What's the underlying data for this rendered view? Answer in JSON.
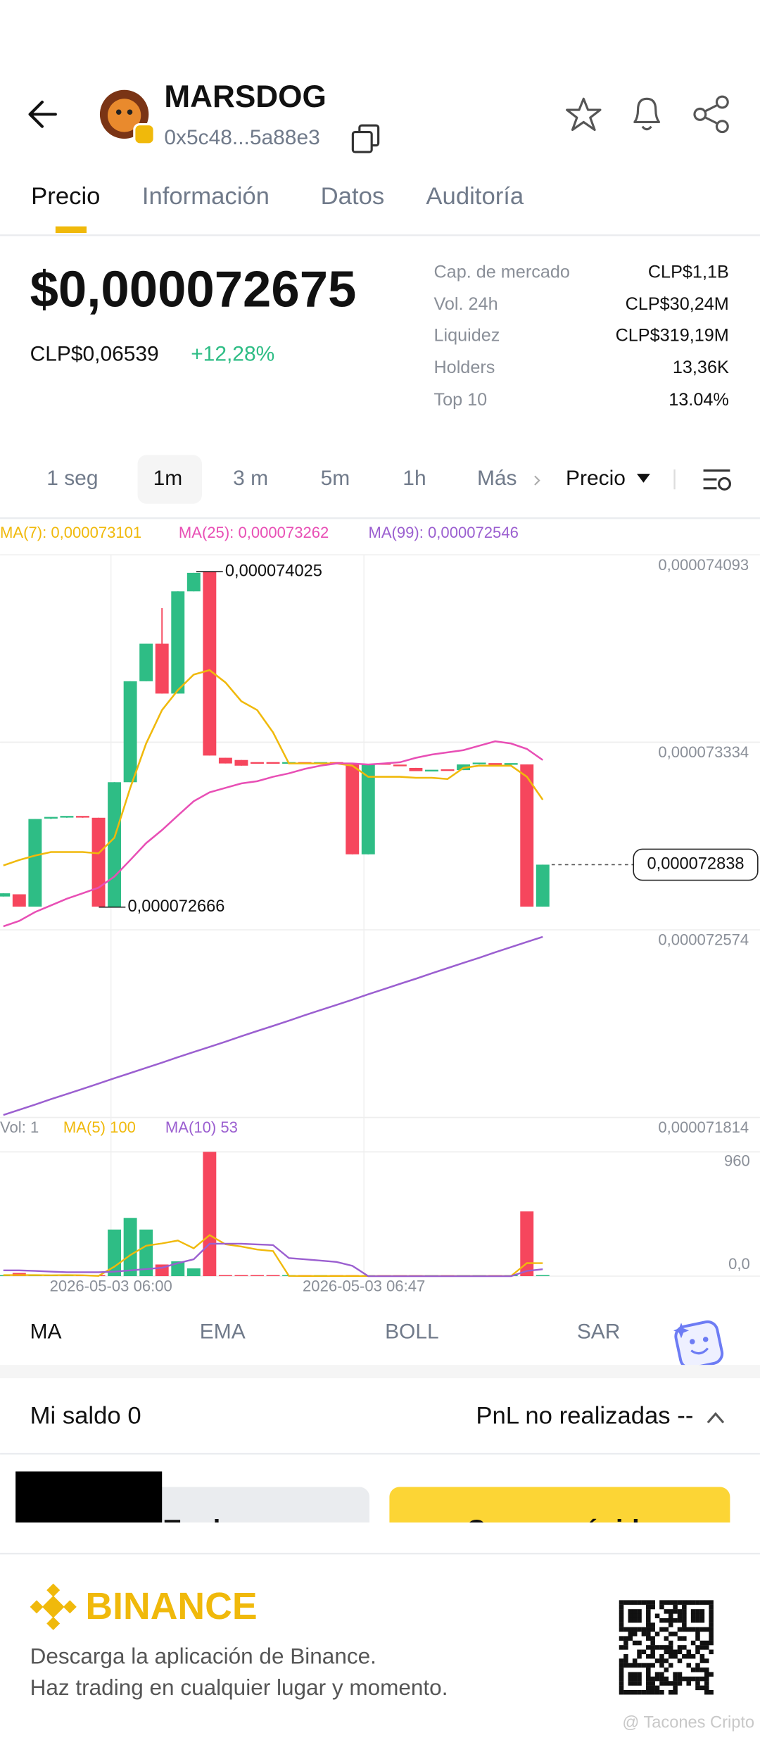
{
  "header": {
    "title": "MARSDOG",
    "address": "0x5c48...5a88e3"
  },
  "tabs": [
    "Precio",
    "Información",
    "Datos",
    "Auditoría"
  ],
  "price": {
    "usd": "$0,000072675",
    "local": "CLP$0,06539",
    "change": "+12,28%"
  },
  "stats": [
    {
      "label": "Cap. de mercado",
      "value": "CLP$1,1B"
    },
    {
      "label": "Vol. 24h",
      "value": "CLP$30,24M"
    },
    {
      "label": "Liquidez",
      "value": "CLP$319,19M"
    },
    {
      "label": "Holders",
      "value": "13,36K"
    },
    {
      "label": "Top 10",
      "value": "13.04%"
    }
  ],
  "intervals": [
    "1 seg",
    "1m",
    "3 m",
    "5m",
    "1h",
    "Más"
  ],
  "price_mode": "Precio",
  "kline": {
    "ma_labels": [
      "MA(7): 0,000073101",
      "MA(25): 0,000073262",
      "MA(99): 0,000072546"
    ],
    "ma_colors": [
      "#f0b90b",
      "#e84fb5",
      "#9b5fd0"
    ],
    "up_color": "#2ebd85",
    "down_color": "#f6465d",
    "ylim": [
      7.1814e-05,
      7.4093e-05
    ],
    "yticks": [
      {
        "value": 7.4093e-05,
        "label": "0,000074093"
      },
      {
        "value": 7.3334e-05,
        "label": "0,000073334"
      },
      {
        "value": 7.2574e-05,
        "label": "0,000072574"
      },
      {
        "value": 7.1814e-05,
        "label": "0,000071814"
      }
    ],
    "candles": [
      [
        7.2709e-05,
        7.2722e-05,
        7.2709e-05,
        7.2722e-05
      ],
      [
        7.2718e-05,
        7.2718e-05,
        7.2668e-05,
        7.2668e-05
      ],
      [
        7.2668e-05,
        7.3023e-05,
        7.2668e-05,
        7.3023e-05
      ],
      [
        7.3023e-05,
        7.3028e-05,
        7.3023e-05,
        7.3028e-05
      ],
      [
        7.3028e-05,
        7.3032e-05,
        7.3028e-05,
        7.3032e-05
      ],
      [
        7.3032e-05,
        7.3032e-05,
        7.3028e-05,
        7.3028e-05
      ],
      [
        7.3028e-05,
        7.3028e-05,
        7.2668e-05,
        7.2668e-05
      ],
      [
        7.2668e-05,
        7.3172e-05,
        7.2666e-05,
        7.3172e-05
      ],
      [
        7.3172e-05,
        7.3581e-05,
        7.3172e-05,
        7.3581e-05
      ],
      [
        7.3581e-05,
        7.3733e-05,
        7.3581e-05,
        7.3733e-05
      ],
      [
        7.3733e-05,
        7.3877e-05,
        7.3531e-05,
        7.3531e-05
      ],
      [
        7.3531e-05,
        7.3945e-05,
        7.3531e-05,
        7.3945e-05
      ],
      [
        7.3945e-05,
        7.402e-05,
        7.3945e-05,
        7.402e-05
      ],
      [
        7.4025e-05,
        7.4025e-05,
        7.328e-05,
        7.328e-05
      ],
      [
        7.3271e-05,
        7.3271e-05,
        7.3248e-05,
        7.3248e-05
      ],
      [
        7.3262e-05,
        7.3262e-05,
        7.3239e-05,
        7.3239e-05
      ],
      [
        7.325e-05,
        7.325e-05,
        7.3248e-05,
        7.3248e-05
      ],
      [
        7.325e-05,
        7.325e-05,
        7.3248e-05,
        7.3248e-05
      ],
      [
        7.3248e-05,
        7.325e-05,
        7.3248e-05,
        7.325e-05
      ],
      [
        7.325e-05,
        7.325e-05,
        7.3248e-05,
        7.3248e-05
      ],
      [
        7.3248e-05,
        7.325e-05,
        7.3248e-05,
        7.325e-05
      ],
      [
        7.325e-05,
        7.325e-05,
        7.3244e-05,
        7.3244e-05
      ],
      [
        7.3244e-05,
        7.3244e-05,
        7.288e-05,
        7.288e-05
      ],
      [
        7.288e-05,
        7.3244e-05,
        7.288e-05,
        7.3244e-05
      ],
      [
        7.3246e-05,
        7.3246e-05,
        7.3244e-05,
        7.3244e-05
      ],
      [
        7.324e-05,
        7.324e-05,
        7.3239e-05,
        7.3239e-05
      ],
      [
        7.323e-05,
        7.323e-05,
        7.3217e-05,
        7.3217e-05
      ],
      [
        7.3217e-05,
        7.3219e-05,
        7.3217e-05,
        7.3219e-05
      ],
      [
        7.3221e-05,
        7.3221e-05,
        7.3219e-05,
        7.3219e-05
      ],
      [
        7.3221e-05,
        7.3244e-05,
        7.3221e-05,
        7.3244e-05
      ],
      [
        7.3244e-05,
        7.3248e-05,
        7.3244e-05,
        7.3248e-05
      ],
      [
        7.3246e-05,
        7.3246e-05,
        7.3244e-05,
        7.3244e-05
      ],
      [
        7.3244e-05,
        7.3246e-05,
        7.3244e-05,
        7.3246e-05
      ],
      [
        7.3244e-05,
        7.3244e-05,
        7.2668e-05,
        7.2668e-05
      ],
      [
        7.2668e-05,
        7.2838e-05,
        7.2668e-05,
        7.2838e-05
      ]
    ],
    "ma7": [
      7.2835e-05,
      7.2857e-05,
      7.2875e-05,
      7.2889e-05,
      7.2889e-05,
      7.2889e-05,
      7.2884e-05,
      7.2947e-05,
      7.3149e-05,
      7.3329e-05,
      7.3464e-05,
      7.3545e-05,
      7.3608e-05,
      7.3626e-05,
      7.3576e-05,
      7.35e-05,
      7.3464e-05,
      7.3374e-05,
      7.3248e-05,
      7.3248e-05,
      7.3248e-05,
      7.3248e-05,
      7.3239e-05,
      7.3194e-05,
      7.3194e-05,
      7.3194e-05,
      7.319e-05,
      7.319e-05,
      7.3185e-05,
      7.323e-05,
      7.3239e-05,
      7.3239e-05,
      7.3239e-05,
      7.3194e-05,
      7.3101e-05
    ],
    "ma25": [
      7.2588e-05,
      7.261e-05,
      7.2646e-05,
      7.2673e-05,
      7.27e-05,
      7.2722e-05,
      7.2745e-05,
      7.279e-05,
      7.2857e-05,
      7.2925e-05,
      7.2978e-05,
      7.3037e-05,
      7.3095e-05,
      7.3131e-05,
      7.3149e-05,
      7.3167e-05,
      7.3176e-05,
      7.3194e-05,
      7.3208e-05,
      7.3226e-05,
      7.3239e-05,
      7.3248e-05,
      7.3248e-05,
      7.3244e-05,
      7.3248e-05,
      7.3253e-05,
      7.3271e-05,
      7.3284e-05,
      7.3293e-05,
      7.3302e-05,
      7.332e-05,
      7.3338e-05,
      7.3329e-05,
      7.3307e-05,
      7.3262e-05
    ],
    "ma99": [
      7.1824e-05,
      7.1845e-05,
      7.1866e-05,
      7.1888e-05,
      7.1909e-05,
      7.193e-05,
      7.1951e-05,
      7.1973e-05,
      7.1994e-05,
      7.2015e-05,
      7.2036e-05,
      7.2058e-05,
      7.2079e-05,
      7.21e-05,
      7.2121e-05,
      7.2143e-05,
      7.2164e-05,
      7.2185e-05,
      7.2206e-05,
      7.2228e-05,
      7.2249e-05,
      7.227e-05,
      7.2291e-05,
      7.2313e-05,
      7.2334e-05,
      7.2355e-05,
      7.2376e-05,
      7.2398e-05,
      7.2419e-05,
      7.244e-05,
      7.2461e-05,
      7.2483e-05,
      7.2504e-05,
      7.2525e-05,
      7.2546e-05
    ],
    "high_label": {
      "value": 7.4025e-05,
      "label": "0,000074025"
    },
    "low_label": {
      "value": 7.2666e-05,
      "label": "0,000072666"
    },
    "last_label": {
      "value": 7.2838e-05,
      "label": "0,000072838"
    },
    "time_labels": [
      "2026-05-03 06:00",
      "2026-05-03 06:47"
    ]
  },
  "volume": {
    "header": [
      "Vol: 1",
      "MA(5) 100",
      "MA(10) 53"
    ],
    "ylim": [
      0,
      960
    ],
    "yticks": [
      960,
      {
        "value": 0,
        "label": "0,0"
      }
    ],
    "values": [
      8,
      25,
      3,
      2,
      2,
      2,
      3,
      360,
      450,
      360,
      90,
      115,
      60,
      960,
      5,
      3,
      2,
      1,
      1,
      1,
      1,
      1,
      1,
      1,
      1,
      1,
      1,
      1,
      3,
      1,
      1,
      1,
      1,
      500,
      1
    ],
    "ma5": [
      8,
      8,
      8,
      7,
      8,
      7,
      2,
      74,
      163,
      235,
      253,
      275,
      215,
      317,
      246,
      229,
      206,
      194,
      2,
      1,
      1,
      1,
      1,
      1,
      1,
      1,
      1,
      1,
      1,
      1,
      1,
      1,
      1,
      101,
      100
    ],
    "ma10": [
      45,
      45,
      40,
      35,
      30,
      30,
      30,
      35,
      45,
      55,
      65,
      100,
      130,
      250,
      250,
      250,
      245,
      240,
      140,
      130,
      120,
      110,
      80,
      0,
      0,
      0,
      0,
      0,
      0,
      0,
      0,
      0,
      0,
      40,
      53
    ]
  },
  "indicators": [
    "MA",
    "EMA",
    "BOLL",
    "SAR"
  ],
  "balance": {
    "label": "Mi saldo 0",
    "pnl": "PnL no realizadas --"
  },
  "buttons": [
    "Trade",
    "Compra rápida"
  ],
  "footer": {
    "brand": "BINANCE",
    "lines": [
      "Descarga la aplicación de Binance.",
      "Haz trading en cualquier lugar y momento."
    ],
    "watermark": "@ Tacones Cripto"
  }
}
